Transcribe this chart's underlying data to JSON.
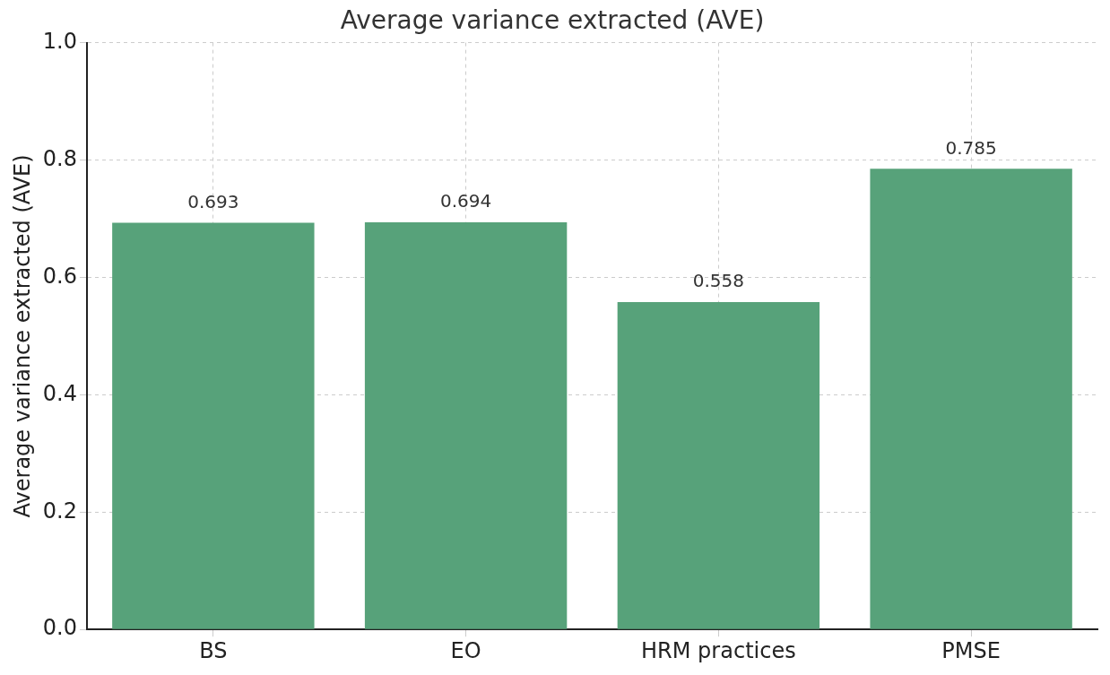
{
  "chart_data": {
    "type": "bar",
    "title": "Average variance extracted (AVE)",
    "ylabel": "Average variance extracted (AVE)",
    "categories": [
      "BS",
      "EO",
      "HRM practices",
      "PMSE"
    ],
    "values": [
      0.693,
      0.694,
      0.558,
      0.785
    ],
    "color": "#57a27a",
    "ylim": [
      0,
      1
    ],
    "yticks": [
      {
        "value": 0,
        "label": "0.0"
      },
      {
        "value": 0.2,
        "label": "0.2"
      },
      {
        "value": 0.4,
        "label": "0.4"
      },
      {
        "value": 0.6,
        "label": "0.6"
      },
      {
        "value": 0.8,
        "label": "0.8"
      },
      {
        "value": 1,
        "label": "1.0"
      }
    ],
    "grid": true,
    "data_labels": true
  }
}
